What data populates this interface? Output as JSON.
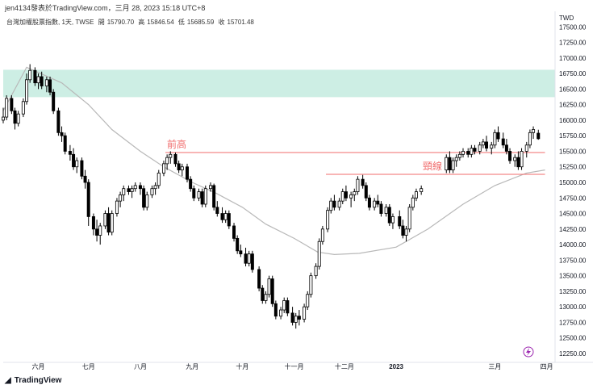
{
  "header": {
    "text": "jen4134發表於TradingView.com，三月 28, 2023 15:18 UTC+8"
  },
  "legend": {
    "symbol": "台灣加權股票指數, 1天, TWSE",
    "open_label": "開",
    "open": "15790.70",
    "high_label": "高",
    "high": "15846.54",
    "low_label": "低",
    "low": "15685.59",
    "close_label": "收",
    "close": "15701.48"
  },
  "brand": {
    "name": "TradingView",
    "logo_icon": "tradingview-logo-icon"
  },
  "chart_data": {
    "type": "candlestick",
    "currency_label": "TWD",
    "ylim": [
      12250,
      17750
    ],
    "y_ticks": [
      17500,
      17250,
      17000,
      16750,
      16500,
      16250,
      16000,
      15750,
      15500,
      15250,
      15000,
      14750,
      14500,
      14250,
      14000,
      13750,
      13500,
      13250,
      13000,
      12750,
      12500,
      12250
    ],
    "x_ticks": [
      "六月",
      "七月",
      "八月",
      "九月",
      "十月",
      "十一月",
      "十二月",
      "2023",
      "三月",
      "四月"
    ],
    "x_tick_dates": [
      "2022-06-01",
      "2022-07-01",
      "2022-08-01",
      "2022-09-01",
      "2022-10-01",
      "2022-11-01",
      "2022-12-01",
      "2023-01-01",
      "2023-03-01",
      "2023-04-01"
    ],
    "x_range": [
      "2022-05-11",
      "2023-04-06"
    ],
    "zone": {
      "low": 16370,
      "high": 16810,
      "color": "#cdeee4"
    },
    "levels": [
      {
        "label": "前高",
        "value": 15480,
        "from": "2022-08-16",
        "to": "2023-03-31",
        "color": "#f06b6b"
      },
      {
        "label": "頸線",
        "value": 15130,
        "from": "2022-11-20",
        "to": "2023-03-31",
        "color": "#f06b6b"
      }
    ],
    "moving_average_color": "#b8b8b8",
    "moving_average": [
      [
        "2022-05-11",
        16150
      ],
      [
        "2022-05-25",
        16850
      ],
      [
        "2022-06-15",
        16600
      ],
      [
        "2022-07-01",
        16250
      ],
      [
        "2022-07-15",
        15850
      ],
      [
        "2022-08-01",
        15500
      ],
      [
        "2022-08-15",
        15250
      ],
      [
        "2022-09-01",
        15000
      ],
      [
        "2022-09-15",
        14830
      ],
      [
        "2022-10-01",
        14600
      ],
      [
        "2022-10-15",
        14330
      ],
      [
        "2022-11-01",
        14100
      ],
      [
        "2022-11-15",
        13880
      ],
      [
        "2022-11-25",
        13840
      ],
      [
        "2022-12-10",
        13860
      ],
      [
        "2023-01-01",
        13960
      ],
      [
        "2023-01-20",
        14250
      ],
      [
        "2023-02-10",
        14650
      ],
      [
        "2023-03-01",
        14950
      ],
      [
        "2023-03-20",
        15150
      ],
      [
        "2023-03-31",
        15200
      ]
    ],
    "candles": [
      [
        "2022-05-11",
        16000,
        16200,
        15950,
        16050
      ],
      [
        "2022-05-13",
        16050,
        16400,
        16000,
        16350
      ],
      [
        "2022-05-16",
        16350,
        16400,
        16100,
        16150
      ],
      [
        "2022-05-18",
        16150,
        16200,
        15850,
        15950
      ],
      [
        "2022-05-20",
        15950,
        16150,
        15900,
        16100
      ],
      [
        "2022-05-23",
        16100,
        16350,
        16050,
        16300
      ],
      [
        "2022-05-25",
        16300,
        16750,
        16250,
        16650
      ],
      [
        "2022-05-27",
        16650,
        16900,
        16600,
        16800
      ],
      [
        "2022-05-30",
        16800,
        16850,
        16550,
        16600
      ],
      [
        "2022-06-01",
        16600,
        16750,
        16500,
        16700
      ],
      [
        "2022-06-03",
        16700,
        16780,
        16500,
        16550
      ],
      [
        "2022-06-06",
        16550,
        16700,
        16450,
        16650
      ],
      [
        "2022-06-08",
        16650,
        16700,
        16400,
        16450
      ],
      [
        "2022-06-10",
        16450,
        16500,
        16100,
        16150
      ],
      [
        "2022-06-13",
        16150,
        16200,
        15750,
        15800
      ],
      [
        "2022-06-15",
        15800,
        15900,
        15650,
        15750
      ],
      [
        "2022-06-17",
        15750,
        15800,
        15450,
        15500
      ],
      [
        "2022-06-20",
        15500,
        15600,
        15350,
        15450
      ],
      [
        "2022-06-22",
        15450,
        15550,
        15200,
        15250
      ],
      [
        "2022-06-24",
        15250,
        15400,
        15150,
        15350
      ],
      [
        "2022-06-27",
        15350,
        15400,
        15050,
        15100
      ],
      [
        "2022-06-29",
        15100,
        15200,
        14900,
        15000
      ],
      [
        "2022-07-01",
        15000,
        15050,
        14300,
        14450
      ],
      [
        "2022-07-04",
        14450,
        14500,
        14150,
        14250
      ],
      [
        "2022-07-06",
        14250,
        14400,
        14050,
        14150
      ],
      [
        "2022-07-08",
        14150,
        14350,
        14000,
        14300
      ],
      [
        "2022-07-11",
        14300,
        14550,
        14250,
        14500
      ],
      [
        "2022-07-13",
        14500,
        14600,
        14150,
        14200
      ],
      [
        "2022-07-15",
        14200,
        14550,
        14150,
        14500
      ],
      [
        "2022-07-18",
        14500,
        14750,
        14450,
        14700
      ],
      [
        "2022-07-20",
        14700,
        14850,
        14600,
        14800
      ],
      [
        "2022-07-22",
        14800,
        14950,
        14700,
        14900
      ],
      [
        "2022-07-25",
        14900,
        14950,
        14800,
        14850
      ],
      [
        "2022-07-27",
        14850,
        14950,
        14750,
        14900
      ],
      [
        "2022-07-29",
        14900,
        15000,
        14850,
        14950
      ],
      [
        "2022-08-01",
        14950,
        15000,
        14800,
        14900
      ],
      [
        "2022-08-03",
        14900,
        14950,
        14550,
        14600
      ],
      [
        "2022-08-05",
        14600,
        14850,
        14550,
        14800
      ],
      [
        "2022-08-08",
        14800,
        14950,
        14750,
        14900
      ],
      [
        "2022-08-10",
        14900,
        15000,
        14800,
        14950
      ],
      [
        "2022-08-12",
        14950,
        15200,
        14900,
        15150
      ],
      [
        "2022-08-15",
        15150,
        15350,
        15100,
        15300
      ],
      [
        "2022-08-17",
        15300,
        15450,
        15200,
        15400
      ],
      [
        "2022-08-19",
        15400,
        15500,
        15300,
        15450
      ],
      [
        "2022-08-22",
        15450,
        15480,
        15250,
        15300
      ],
      [
        "2022-08-24",
        15300,
        15350,
        15150,
        15200
      ],
      [
        "2022-08-26",
        15200,
        15300,
        15100,
        15250
      ],
      [
        "2022-08-29",
        15250,
        15300,
        15000,
        15050
      ],
      [
        "2022-08-31",
        15050,
        15100,
        14850,
        14900
      ],
      [
        "2022-09-02",
        14900,
        14950,
        14700,
        14750
      ],
      [
        "2022-09-05",
        14750,
        14900,
        14700,
        14850
      ],
      [
        "2022-09-07",
        14850,
        14900,
        14600,
        14650
      ],
      [
        "2022-09-09",
        14650,
        14950,
        14600,
        14900
      ],
      [
        "2022-09-12",
        14900,
        15000,
        14850,
        14950
      ],
      [
        "2022-09-14",
        14950,
        14980,
        14550,
        14600
      ],
      [
        "2022-09-16",
        14600,
        14700,
        14450,
        14500
      ],
      [
        "2022-09-19",
        14500,
        14600,
        14350,
        14400
      ],
      [
        "2022-09-21",
        14400,
        14550,
        14350,
        14500
      ],
      [
        "2022-09-23",
        14500,
        14550,
        14250,
        14300
      ],
      [
        "2022-09-26",
        14300,
        14350,
        14050,
        14100
      ],
      [
        "2022-09-28",
        14100,
        14150,
        13850,
        13900
      ],
      [
        "2022-09-30",
        13900,
        14000,
        13800,
        13850
      ],
      [
        "2022-10-03",
        13850,
        13950,
        13650,
        13700
      ],
      [
        "2022-10-05",
        13700,
        13900,
        13650,
        13850
      ],
      [
        "2022-10-07",
        13850,
        13900,
        13550,
        13600
      ],
      [
        "2022-10-11",
        13600,
        13650,
        13250,
        13300
      ],
      [
        "2022-10-13",
        13300,
        13350,
        13050,
        13100
      ],
      [
        "2022-10-15",
        13100,
        13250,
        13050,
        13200
      ],
      [
        "2022-10-17",
        13200,
        13500,
        13150,
        13450
      ],
      [
        "2022-10-19",
        13450,
        13500,
        13000,
        13050
      ],
      [
        "2022-10-21",
        13050,
        13100,
        12800,
        12850
      ],
      [
        "2022-10-24",
        12850,
        13000,
        12800,
        12950
      ],
      [
        "2022-10-26",
        12950,
        13150,
        12900,
        13100
      ],
      [
        "2022-10-28",
        13100,
        13150,
        12850,
        12900
      ],
      [
        "2022-10-31",
        12900,
        13000,
        12700,
        12750
      ],
      [
        "2022-11-02",
        12750,
        12900,
        12650,
        12850
      ],
      [
        "2022-11-04",
        12850,
        12950,
        12700,
        12800
      ],
      [
        "2022-11-07",
        12800,
        13050,
        12750,
        13000
      ],
      [
        "2022-11-09",
        13000,
        13250,
        12950,
        13200
      ],
      [
        "2022-11-11",
        13200,
        13550,
        13150,
        13500
      ],
      [
        "2022-11-14",
        13500,
        13700,
        13450,
        13650
      ],
      [
        "2022-11-16",
        13650,
        14100,
        13600,
        14050
      ],
      [
        "2022-11-18",
        14050,
        14300,
        14000,
        14250
      ],
      [
        "2022-11-21",
        14250,
        14600,
        14200,
        14550
      ],
      [
        "2022-11-23",
        14550,
        14750,
        14500,
        14700
      ],
      [
        "2022-11-25",
        14700,
        14800,
        14550,
        14600
      ],
      [
        "2022-11-28",
        14600,
        14750,
        14550,
        14700
      ],
      [
        "2022-11-30",
        14700,
        14900,
        14650,
        14850
      ],
      [
        "2022-12-02",
        14850,
        14950,
        14700,
        14750
      ],
      [
        "2022-12-05",
        14750,
        14850,
        14600,
        14800
      ],
      [
        "2022-12-07",
        14800,
        14900,
        14700,
        14850
      ],
      [
        "2022-12-09",
        14850,
        15100,
        14800,
        15050
      ],
      [
        "2022-12-12",
        15050,
        15120,
        14900,
        14950
      ],
      [
        "2022-12-14",
        14950,
        15000,
        14700,
        14750
      ],
      [
        "2022-12-16",
        14750,
        14800,
        14550,
        14600
      ],
      [
        "2022-12-19",
        14600,
        14750,
        14550,
        14700
      ],
      [
        "2022-12-21",
        14700,
        14800,
        14600,
        14650
      ],
      [
        "2022-12-23",
        14650,
        14700,
        14450,
        14500
      ],
      [
        "2022-12-26",
        14500,
        14650,
        14450,
        14600
      ],
      [
        "2022-12-28",
        14600,
        14650,
        14300,
        14350
      ],
      [
        "2022-12-30",
        14350,
        14500,
        14250,
        14450
      ],
      [
        "2023-01-03",
        14450,
        14550,
        14250,
        14300
      ],
      [
        "2023-01-05",
        14300,
        14400,
        14100,
        14150
      ],
      [
        "2023-01-07",
        14150,
        14300,
        14050,
        14250
      ],
      [
        "2023-01-09",
        14250,
        14650,
        14200,
        14600
      ],
      [
        "2023-01-11",
        14600,
        14800,
        14550,
        14750
      ],
      [
        "2023-01-13",
        14750,
        14900,
        14700,
        14850
      ],
      [
        "2023-01-16",
        14850,
        14950,
        14800,
        14900
      ],
      [
        "2023-01-31",
        15200,
        15450,
        15150,
        15400
      ],
      [
        "2023-02-02",
        15400,
        15500,
        15150,
        15200
      ],
      [
        "2023-02-04",
        15200,
        15400,
        15150,
        15350
      ],
      [
        "2023-02-06",
        15350,
        15450,
        15250,
        15400
      ],
      [
        "2023-02-08",
        15400,
        15500,
        15350,
        15450
      ],
      [
        "2023-02-10",
        15450,
        15550,
        15400,
        15500
      ],
      [
        "2023-02-13",
        15500,
        15550,
        15400,
        15450
      ],
      [
        "2023-02-15",
        15450,
        15600,
        15400,
        15550
      ],
      [
        "2023-02-17",
        15550,
        15600,
        15450,
        15500
      ],
      [
        "2023-02-20",
        15500,
        15650,
        15450,
        15600
      ],
      [
        "2023-02-22",
        15600,
        15700,
        15550,
        15650
      ],
      [
        "2023-02-24",
        15650,
        15750,
        15500,
        15550
      ],
      [
        "2023-02-27",
        15550,
        15650,
        15450,
        15600
      ],
      [
        "2023-03-01",
        15600,
        15850,
        15550,
        15800
      ],
      [
        "2023-03-03",
        15800,
        15900,
        15650,
        15700
      ],
      [
        "2023-03-06",
        15700,
        15800,
        15550,
        15600
      ],
      [
        "2023-03-08",
        15600,
        15700,
        15450,
        15500
      ],
      [
        "2023-03-10",
        15500,
        15550,
        15300,
        15350
      ],
      [
        "2023-03-13",
        15350,
        15450,
        15250,
        15400
      ],
      [
        "2023-03-15",
        15400,
        15500,
        15200,
        15250
      ],
      [
        "2023-03-17",
        15250,
        15550,
        15200,
        15500
      ],
      [
        "2023-03-20",
        15500,
        15650,
        15400,
        15600
      ],
      [
        "2023-03-22",
        15600,
        15850,
        15550,
        15800
      ],
      [
        "2023-03-24",
        15800,
        15900,
        15700,
        15850
      ],
      [
        "2023-03-27",
        15790.7,
        15846.54,
        15685.59,
        15701.48
      ]
    ]
  }
}
